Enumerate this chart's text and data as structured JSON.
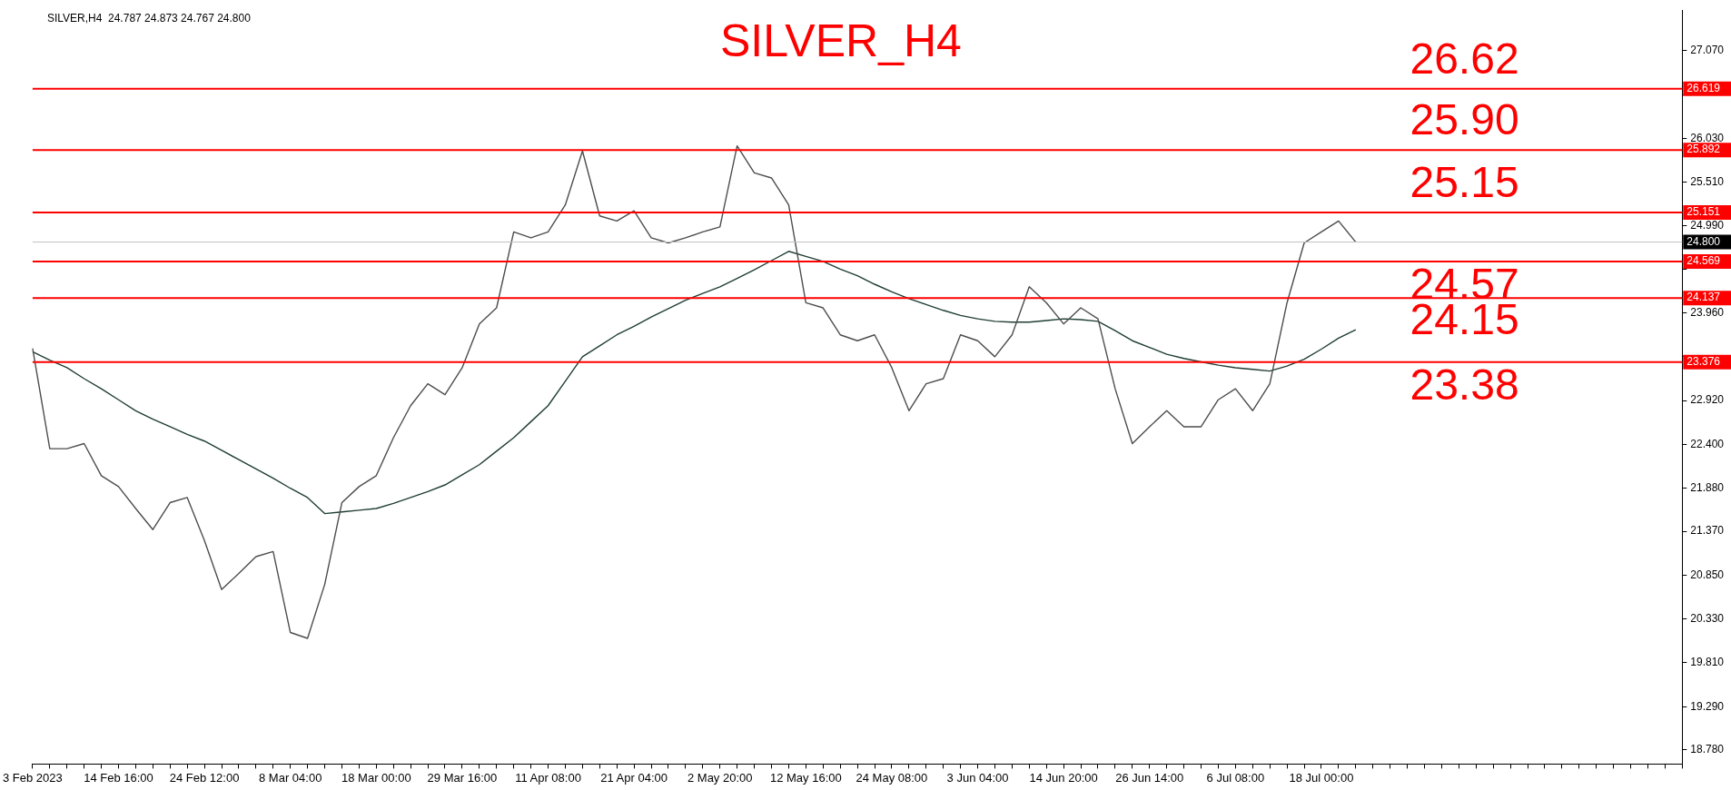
{
  "chart_data": {
    "type": "line",
    "title": "SILVER_H4",
    "annotations": [
      "SILVER,H4  24.787 24.873 24.767 24.800",
      {
        "text": "26.62",
        "y": 26.62
      },
      {
        "text": "25.90",
        "y": 25.9
      },
      {
        "text": "25.15",
        "y": 25.15
      },
      {
        "text": "24.57",
        "y": 24.57
      },
      {
        "text": "24.15",
        "y": 24.15
      },
      {
        "text": "23.38",
        "y": 23.38
      }
    ],
    "categories": [
      "3 Feb 2023",
      null,
      null,
      null,
      null,
      "14 Feb 16:00",
      null,
      null,
      null,
      null,
      "24 Feb 12:00",
      null,
      null,
      null,
      null,
      "8 Mar 04:00",
      null,
      null,
      null,
      null,
      "18 Mar 00:00",
      null,
      null,
      null,
      null,
      "29 Mar 16:00",
      null,
      null,
      null,
      null,
      "11 Apr 08:00",
      null,
      null,
      null,
      null,
      "21 Apr 04:00",
      null,
      null,
      null,
      null,
      "2 May 20:00",
      null,
      null,
      null,
      null,
      "12 May 16:00",
      null,
      null,
      null,
      null,
      "24 May 08:00",
      null,
      null,
      null,
      null,
      "3 Jun 04:00",
      null,
      null,
      null,
      null,
      "14 Jun 20:00",
      null,
      null,
      null,
      null,
      "26 Jun 14:00",
      null,
      null,
      null,
      null,
      "6 Jul 08:00",
      null,
      null,
      null,
      null,
      "18 Jul 00:00",
      null,
      null,
      null,
      null,
      null,
      null,
      null,
      null,
      null,
      null,
      null,
      null,
      null,
      null,
      null,
      null,
      null,
      null,
      null,
      null,
      null
    ],
    "series": [
      {
        "color": "#4d4d4d",
        "values": [
          23.54,
          22.35,
          22.35,
          22.41,
          22.03,
          21.9,
          21.64,
          21.39,
          21.71,
          21.77,
          21.26,
          20.68,
          20.87,
          21.07,
          21.13,
          20.17,
          20.1,
          20.74,
          21.71,
          21.9,
          22.03,
          22.48,
          22.86,
          23.12,
          22.99,
          23.31,
          23.83,
          24.02,
          24.92,
          24.85,
          24.92,
          25.24,
          25.88,
          25.11,
          25.05,
          25.17,
          24.85,
          24.79,
          24.85,
          24.92,
          24.98,
          25.94,
          25.62,
          25.56,
          25.24,
          24.08,
          24.02,
          23.7,
          23.63,
          23.7,
          23.31,
          22.8,
          23.12,
          23.18,
          23.7,
          23.63,
          23.44,
          23.7,
          24.27,
          24.08,
          23.83,
          24.02,
          23.89,
          23.06,
          22.41,
          22.61,
          22.8,
          22.61,
          22.61,
          22.93,
          23.06,
          22.8,
          23.12,
          24.08,
          24.79,
          24.92,
          25.05,
          24.8,
          null,
          null,
          null,
          null,
          null,
          null,
          null,
          null,
          null,
          null,
          null,
          null,
          null,
          null,
          null,
          null,
          null,
          null,
          null
        ]
      },
      {
        "color": "#1f3d35",
        "values": [
          23.5,
          23.4,
          23.31,
          23.18,
          23.06,
          22.93,
          22.8,
          22.7,
          22.61,
          22.52,
          22.44,
          22.33,
          22.22,
          22.11,
          22.0,
          21.88,
          21.77,
          21.58,
          21.6,
          21.62,
          21.64,
          21.7,
          21.77,
          21.84,
          21.92,
          22.04,
          22.16,
          22.32,
          22.48,
          22.67,
          22.86,
          23.15,
          23.44,
          23.57,
          23.7,
          23.8,
          23.91,
          24.01,
          24.11,
          24.19,
          24.27,
          24.37,
          24.47,
          24.58,
          24.69,
          24.63,
          24.57,
          24.48,
          24.4,
          24.3,
          24.21,
          24.13,
          24.06,
          23.99,
          23.93,
          23.89,
          23.86,
          23.85,
          23.85,
          23.87,
          23.89,
          23.88,
          23.86,
          23.75,
          23.63,
          23.55,
          23.47,
          23.42,
          23.38,
          23.34,
          23.31,
          23.29,
          23.27,
          23.33,
          23.41,
          23.53,
          23.66,
          23.76,
          null,
          null,
          null,
          null,
          null,
          null,
          null,
          null,
          null,
          null,
          null,
          null,
          null,
          null,
          null,
          null,
          null,
          null,
          null
        ]
      }
    ],
    "ylim": [
      18.61,
      27.55
    ],
    "yticks": [
      {
        "value": 18.78,
        "label": "18.780"
      },
      {
        "value": 19.29,
        "label": "19.290"
      },
      {
        "value": 19.81,
        "label": "19.810"
      },
      {
        "value": 20.33,
        "label": "20.330"
      },
      {
        "value": 20.85,
        "label": "20.850"
      },
      {
        "value": 21.37,
        "label": "21.370"
      },
      {
        "value": 21.88,
        "label": "21.880"
      },
      {
        "value": 22.4,
        "label": "22.400"
      },
      {
        "value": 22.92,
        "label": "22.920"
      },
      {
        "value": 23.44,
        "label": null
      },
      {
        "value": 23.96,
        "label": "23.960"
      },
      {
        "value": 24.48,
        "label": null
      },
      {
        "value": 24.99,
        "label": "24.990"
      },
      {
        "value": 25.51,
        "label": "25.510"
      },
      {
        "value": 26.03,
        "label": "26.030"
      },
      {
        "value": 26.55,
        "label": null
      },
      {
        "value": 27.07,
        "label": "27.070"
      }
    ],
    "ref_lines": [
      {
        "axis": "y",
        "value": 26.619,
        "label": "26.619",
        "color": "#ff0000"
      },
      {
        "axis": "y",
        "value": 25.892,
        "label": "25.892",
        "color": "#ff0000"
      },
      {
        "axis": "y",
        "value": 25.151,
        "label": "25.151",
        "color": "#ff0000"
      },
      {
        "axis": "y",
        "value": 24.8,
        "label": "24.800",
        "color": "#c0c0c0"
      },
      {
        "axis": "y",
        "value": 24.569,
        "label": "24.569",
        "color": "#ff0000"
      },
      {
        "axis": "y",
        "value": 24.137,
        "label": "24.137",
        "color": "#ff0000"
      },
      {
        "axis": "y",
        "value": 23.376,
        "label": "23.376",
        "color": "#ff0000"
      }
    ],
    "grid": false,
    "legend": false,
    "marker": "none",
    "line_style": "solid"
  }
}
